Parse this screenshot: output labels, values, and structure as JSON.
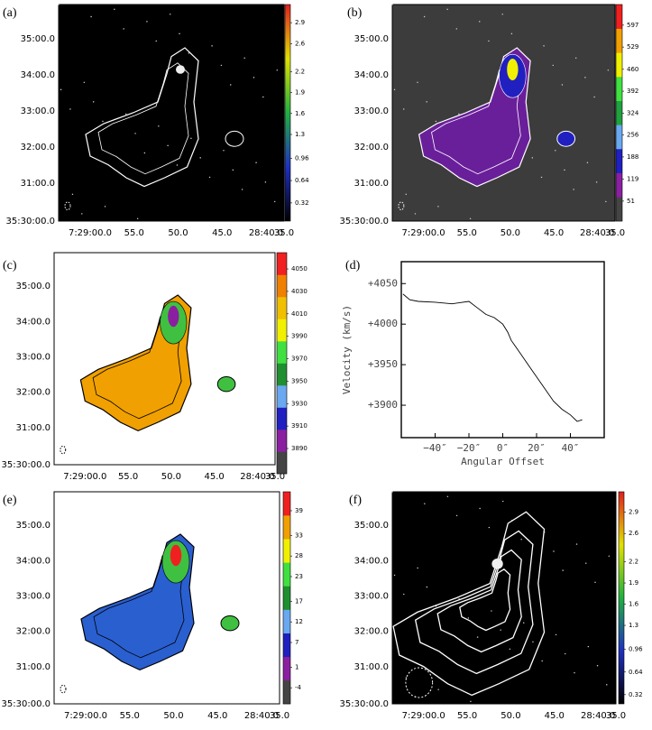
{
  "chart_data": [
    {
      "type": "image",
      "label": "(a)",
      "background": "#000000",
      "xtick_labels": [
        "7:29:00.0",
        "55.0",
        "50.0",
        "45.0",
        "28:40.0",
        "35.0"
      ],
      "ytick_labels": [
        "35:00.0",
        "34:00.0",
        "33:00.0",
        "32:00.0",
        "31:00.0",
        "35:30:00.0"
      ],
      "colorbar": {
        "gradient": true,
        "colors": [
          "#000000",
          "#2030c0",
          "#20b040",
          "#e0e000",
          "#e02020"
        ],
        "lim": [
          0.06,
          3.16
        ],
        "ticks": [
          0.32,
          0.64,
          0.96,
          1.3,
          1.6,
          1.9,
          2.2,
          2.6,
          2.9
        ]
      }
    },
    {
      "type": "image",
      "label": "(b)",
      "background": "#3c3c3c",
      "xtick_labels": [
        "7:29:00.0",
        "55.0",
        "50.0",
        "45.0",
        "28:40.0",
        "35.0"
      ],
      "ytick_labels": [
        "35:00.0",
        "34:00.0",
        "33:00.0",
        "32:00.0",
        "31:00.0",
        "35:30:00.0"
      ],
      "colorbar": {
        "gradient": false,
        "colors": [
          "#444444",
          "#8a1fa0",
          "#2020c0",
          "#6aa8f0",
          "#20a040",
          "#40e040",
          "#f0f000",
          "#f0a000",
          "#f02020"
        ],
        "lim": [
          -11,
          661
        ],
        "ticks": [
          51,
          119,
          188,
          256,
          324,
          392,
          460,
          529,
          597
        ]
      }
    },
    {
      "type": "image",
      "label": "(c)",
      "background": "#ffffff",
      "xtick_labels": [
        "7:29:00.0",
        "55.0",
        "50.0",
        "45.0",
        "28:40.0",
        "35.0"
      ],
      "ytick_labels": [
        "35:00.0",
        "34:00.0",
        "33:00.0",
        "32:00.0",
        "31:00.0",
        "35:30:00.0"
      ],
      "colorbar": {
        "gradient": false,
        "colors": [
          "#444444",
          "#8a1fa0",
          "#2020c0",
          "#6aa8f0",
          "#1f8f30",
          "#40e040",
          "#f0f000",
          "#f0c000",
          "#f08000",
          "#f02020"
        ],
        "lim": [
          3867.5,
          4064.5
        ],
        "ticks": [
          3890,
          3910,
          3930,
          3950,
          3970,
          3990,
          4010,
          4030,
          4050
        ]
      }
    },
    {
      "type": "line",
      "label": "(d)",
      "xlabel": "Angular Offset",
      "ylabel": "Velocity (km/s)",
      "x": [
        -59,
        -55,
        -50,
        -40,
        -30,
        -20,
        -15,
        -10,
        -5,
        0,
        3,
        5,
        10,
        15,
        20,
        25,
        30,
        35,
        40,
        44,
        47
      ],
      "values": [
        4037,
        4030,
        4028,
        4027,
        4025,
        4028,
        4020,
        4012,
        4008,
        4000,
        3990,
        3980,
        3965,
        3950,
        3935,
        3920,
        3905,
        3895,
        3888,
        3880,
        3882
      ],
      "xlim": [
        -60,
        60
      ],
      "ylim": [
        3860,
        4077
      ],
      "xticks": [
        {
          "value": -40,
          "label": "−40″"
        },
        {
          "value": -20,
          "label": "−20″"
        },
        {
          "value": 0,
          "label": "0″"
        },
        {
          "value": 20,
          "label": "20″"
        },
        {
          "value": 40,
          "label": "40″"
        }
      ],
      "yticks": [
        {
          "value": 3900,
          "label": "+3900"
        },
        {
          "value": 3950,
          "label": "+3950"
        },
        {
          "value": 4000,
          "label": "+4000"
        },
        {
          "value": 4050,
          "label": "+4050"
        }
      ],
      "color": "#000000"
    },
    {
      "type": "image",
      "label": "(e)",
      "background": "#ffffff",
      "xtick_labels": [
        "7:29:00.0",
        "55.0",
        "50.0",
        "45.0",
        "28:40.0",
        "35.0"
      ],
      "ytick_labels": [
        "35:00.0",
        "34:00.0",
        "33:00.0",
        "32:00.0",
        "31:00.0",
        "35:30:00.0"
      ],
      "colorbar": {
        "gradient": false,
        "colors": [
          "#444444",
          "#8a1fa0",
          "#2020c0",
          "#6aa8f0",
          "#1f8f30",
          "#40e040",
          "#f0f000",
          "#f0a000",
          "#f02020"
        ],
        "lim": [
          -7.9,
          43.6
        ],
        "ticks": [
          -4,
          1,
          7,
          12,
          17,
          23,
          28,
          33,
          39
        ]
      }
    },
    {
      "type": "image",
      "label": "(f)",
      "background": "#000000",
      "xtick_labels": [
        "7:29:00.0",
        "55.0",
        "50.0",
        "45.0",
        "28:40.0",
        "35.0"
      ],
      "ytick_labels": [
        "35:00.0",
        "34:00.0",
        "33:00.0",
        "32:00.0",
        "31:00.0",
        "35:30:00.0"
      ],
      "colorbar": {
        "gradient": true,
        "colors": [
          "#000000",
          "#2030c0",
          "#20b040",
          "#e0e000",
          "#e02020"
        ],
        "lim": [
          0.19,
          3.19
        ],
        "ticks": [
          0.32,
          0.64,
          0.96,
          1.3,
          1.6,
          1.9,
          2.2,
          2.6,
          2.9
        ]
      }
    }
  ]
}
